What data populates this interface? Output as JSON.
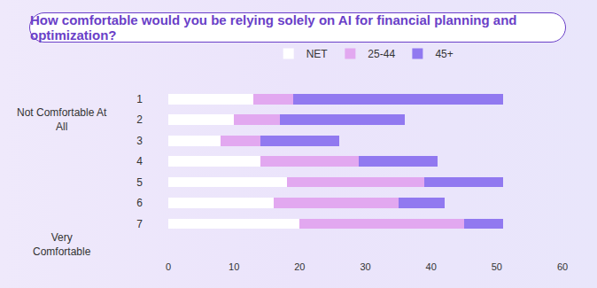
{
  "chart_data": {
    "type": "bar",
    "title": "How comfortable would you be relying solely on AI for financial planning and optimization?",
    "orientation": "horizontal",
    "stacked": true,
    "categories": [
      "1",
      "2",
      "3",
      "4",
      "5",
      "6",
      "7"
    ],
    "annotations": [
      {
        "text": "Not Comfortable At All",
        "category": "1"
      },
      {
        "text": "Very Comfortable",
        "category": "7"
      }
    ],
    "series": [
      {
        "name": "NET",
        "color": "#ffffff",
        "values": [
          13,
          10,
          8,
          14,
          18,
          16,
          20
        ]
      },
      {
        "name": "25-44",
        "color": "#e2a8f0",
        "values": [
          6,
          7,
          6,
          15,
          21,
          19,
          25
        ]
      },
      {
        "name": "45+",
        "color": "#9179f0",
        "values": [
          32,
          19,
          12,
          12,
          12,
          7,
          6
        ]
      }
    ],
    "xlim": [
      0,
      60
    ],
    "xticks": [
      0,
      10,
      20,
      30,
      40,
      50,
      60
    ],
    "grid": false,
    "legend": "top"
  }
}
